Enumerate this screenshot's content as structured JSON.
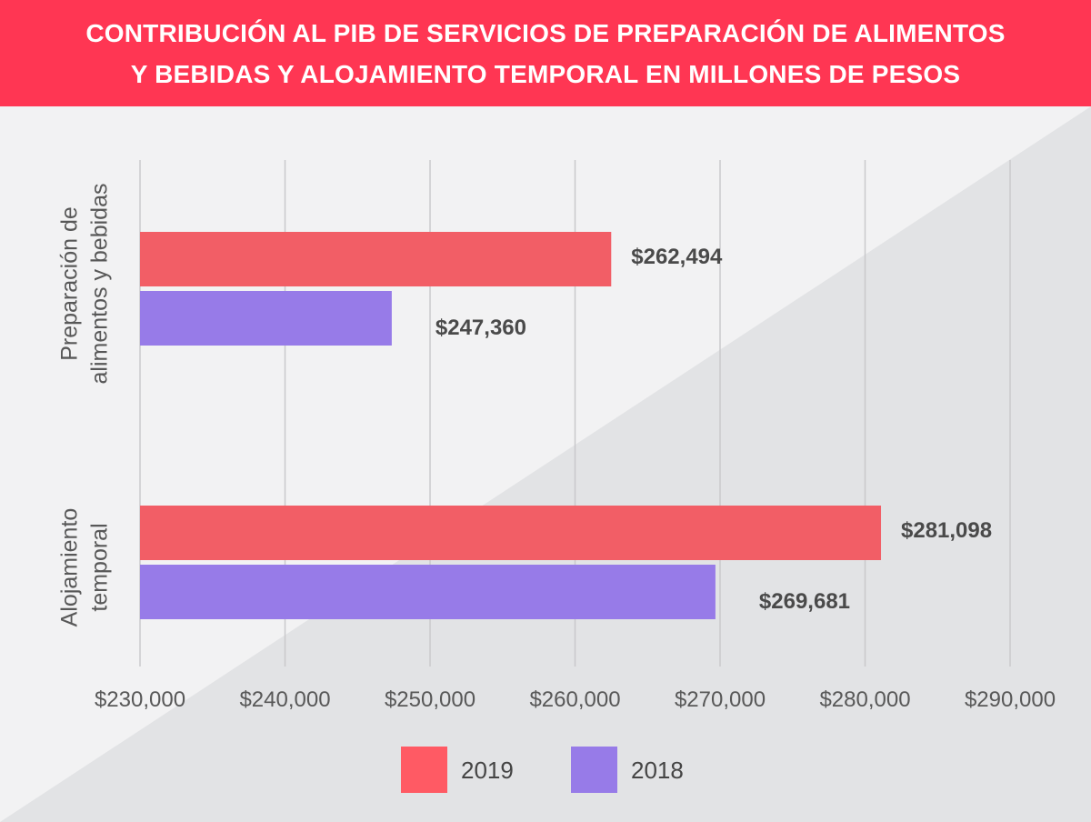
{
  "chart_data": {
    "type": "bar",
    "orientation": "horizontal",
    "title": "CONTRIBUCIÓN AL PIB DE SERVICIOS DE PREPARACIÓN DE ALIMENTOS Y BEBIDAS Y ALOJAMIENTO TEMPORAL EN MILLONES DE PESOS",
    "categories": [
      "Preparación de alimentos y bebidas",
      "Alojamiento temporal"
    ],
    "category_label_lines": [
      [
        "Preparación de",
        "alimentos y bebidas"
      ],
      [
        "Alojamiento",
        "temporal"
      ]
    ],
    "series": [
      {
        "name": "2019",
        "values": [
          262494,
          281098
        ],
        "labels": [
          "$262,494",
          "$281,098"
        ],
        "color": "#f25e66"
      },
      {
        "name": "2018",
        "values": [
          247360,
          269681
        ],
        "labels": [
          "$247,360",
          "$269,681"
        ],
        "color": "#977be8"
      }
    ],
    "xlim": [
      230000,
      290000
    ],
    "xticks": [
      230000,
      240000,
      250000,
      260000,
      270000,
      280000,
      290000
    ],
    "xtick_labels": [
      "$230,000",
      "$240,000",
      "$250,000",
      "$260,000",
      "$270,000",
      "$280,000",
      "$290,000"
    ],
    "grid": true,
    "legend_position": "bottom",
    "legend_colors": [
      "#ff5a64",
      "#977be8"
    ]
  },
  "colors": {
    "banner": "#ff3653",
    "background": "#f2f2f3",
    "diagonal": "#e2e3e5",
    "grid": "#c9c9cc"
  }
}
